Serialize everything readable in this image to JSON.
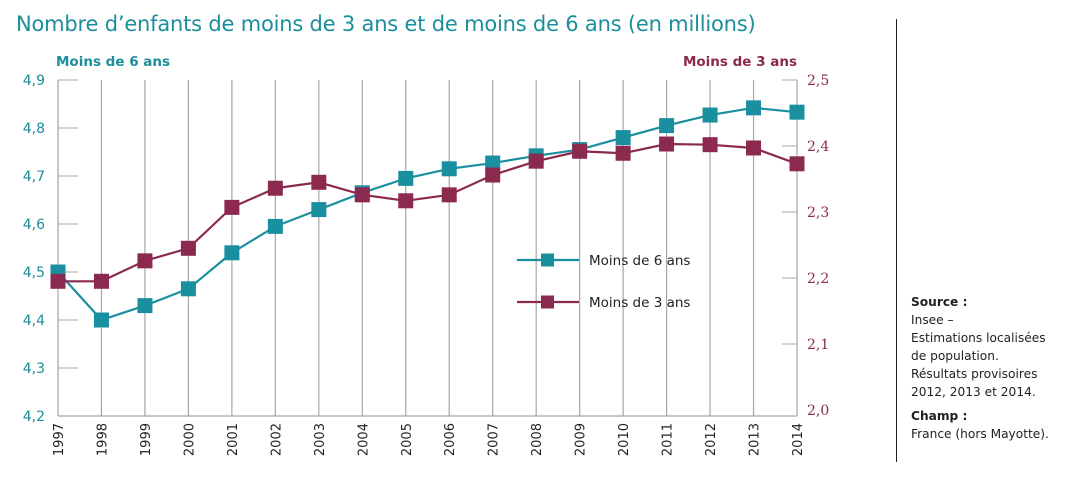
{
  "chart_data": {
    "type": "line",
    "title": "Nombre d’enfants de moins de 3 ans et de moins de 6 ans (en millions)",
    "xlabel": "",
    "x": [
      "1997",
      "1998",
      "1999",
      "2000",
      "2001",
      "2002",
      "2003",
      "2004",
      "2005",
      "2006",
      "2007",
      "2008",
      "2009",
      "2010",
      "2011",
      "2012",
      "2013",
      "2014"
    ],
    "y_left": {
      "label": "Moins de 6 ans",
      "range": [
        4.2,
        4.9
      ],
      "ticks": [
        "4,2",
        "4,3",
        "4,4",
        "4,5",
        "4,6",
        "4,7",
        "4,8",
        "4,9"
      ],
      "color": "#1b8e9b"
    },
    "y_right": {
      "label": "Moins de 3 ans",
      "range": [
        2.0,
        2.5
      ],
      "ticks": [
        "2,0",
        "2,1",
        "2,2",
        "2,3",
        "2,4",
        "2,5"
      ],
      "color": "#8b2a4e"
    },
    "series": [
      {
        "name": "Moins de 6 ans",
        "axis": "left",
        "color": "#1a8fa0",
        "marker": "square",
        "values": [
          4.5,
          4.4,
          4.43,
          4.465,
          4.54,
          4.595,
          4.63,
          4.665,
          4.695,
          4.715,
          4.727,
          4.742,
          4.755,
          4.78,
          4.805,
          4.827,
          4.842,
          4.833
        ]
      },
      {
        "name": "Moins de 3 ans",
        "axis": "right",
        "color": "#8b2a4e",
        "marker": "square",
        "values": [
          2.195,
          2.195,
          2.226,
          2.245,
          2.307,
          2.336,
          2.345,
          2.326,
          2.317,
          2.326,
          2.356,
          2.377,
          2.392,
          2.389,
          2.403,
          2.402,
          2.397,
          2.373
        ]
      }
    ],
    "grid": "vertical",
    "legend_position": "center-right"
  },
  "notes": {
    "source_label": "Source :",
    "source_lines": [
      "Insee –",
      "Estimations localisées",
      "de population.",
      "Résultats provisoires",
      "2012, 2013 et 2014."
    ],
    "champ_label": "Champ :",
    "champ_lines": [
      "France (hors Mayotte)."
    ]
  }
}
